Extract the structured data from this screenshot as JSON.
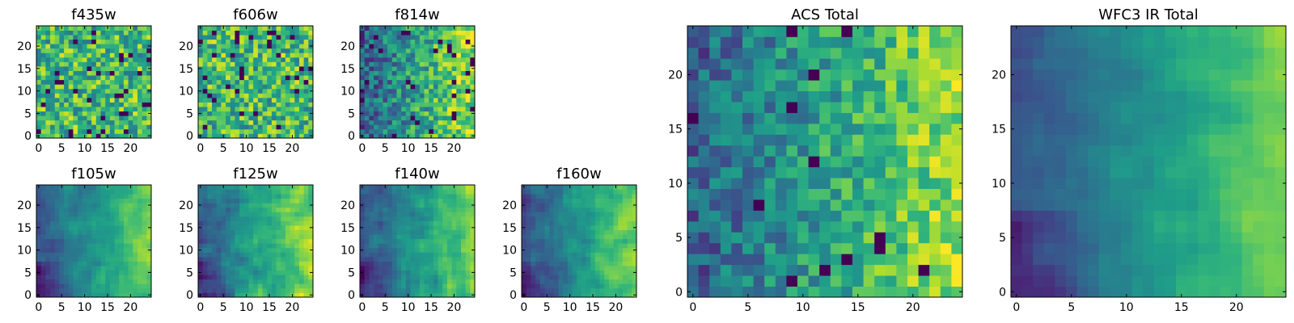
{
  "chart_data": {
    "type": "heatmap",
    "colormap": "viridis",
    "grid_size": 25,
    "panels": [
      {
        "title": "f435w",
        "xticks": [
          0,
          5,
          10,
          15,
          20
        ],
        "yticks": [
          0,
          5,
          10,
          15,
          20
        ],
        "xlim": [
          0,
          25
        ],
        "ylim": [
          0,
          25
        ],
        "pattern": "noise",
        "seed": 11,
        "bias": 0.05,
        "noise": 1.0
      },
      {
        "title": "f606w",
        "xticks": [
          0,
          5,
          10,
          15,
          20
        ],
        "yticks": [
          0,
          5,
          10,
          15,
          20
        ],
        "xlim": [
          0,
          25
        ],
        "ylim": [
          0,
          25
        ],
        "pattern": "noise",
        "seed": 23,
        "bias": 0.05,
        "noise": 1.0
      },
      {
        "title": "f814w",
        "xticks": [
          0,
          5,
          10,
          15,
          20
        ],
        "yticks": [
          0,
          5,
          10,
          15,
          20
        ],
        "xlim": [
          0,
          25
        ],
        "ylim": [
          0,
          25
        ],
        "pattern": "gradient",
        "seed": 37,
        "bias": 0.0,
        "noise": 0.8
      },
      {
        "title": "f105w",
        "xticks": [
          0,
          5,
          10,
          15,
          20
        ],
        "yticks": [
          0,
          5,
          10,
          15,
          20
        ],
        "xlim": [
          0,
          25
        ],
        "ylim": [
          0,
          25
        ],
        "pattern": "smooth",
        "seed": 41,
        "bias": 0.0,
        "noise": 0.45
      },
      {
        "title": "f125w",
        "xticks": [
          0,
          5,
          10,
          15,
          20
        ],
        "yticks": [
          0,
          5,
          10,
          15,
          20
        ],
        "xlim": [
          0,
          25
        ],
        "ylim": [
          0,
          25
        ],
        "pattern": "smooth",
        "seed": 53,
        "bias": 0.05,
        "noise": 0.6
      },
      {
        "title": "f140w",
        "xticks": [
          0,
          5,
          10,
          15,
          20
        ],
        "yticks": [
          0,
          5,
          10,
          15,
          20
        ],
        "xlim": [
          0,
          25
        ],
        "ylim": [
          0,
          25
        ],
        "pattern": "smooth",
        "seed": 67,
        "bias": 0.0,
        "noise": 0.55
      },
      {
        "title": "f160w",
        "xticks": [
          0,
          5,
          10,
          15,
          20
        ],
        "yticks": [
          0,
          5,
          10,
          15,
          20
        ],
        "xlim": [
          0,
          25
        ],
        "ylim": [
          0,
          25
        ],
        "pattern": "smooth",
        "seed": 79,
        "bias": 0.0,
        "noise": 0.5
      },
      {
        "title": "ACS Total",
        "xticks": [
          0,
          5,
          10,
          15,
          20
        ],
        "yticks": [
          0,
          5,
          10,
          15,
          20
        ],
        "xlim": [
          0,
          25
        ],
        "ylim": [
          0,
          25
        ],
        "pattern": "gradient",
        "seed": 83,
        "bias": 0.0,
        "noise": 0.65
      },
      {
        "title": "WFC3 IR Total",
        "xticks": [
          0,
          5,
          10,
          15,
          20
        ],
        "yticks": [
          0,
          5,
          10,
          15,
          20
        ],
        "xlim": [
          0,
          25
        ],
        "ylim": [
          0,
          25
        ],
        "pattern": "smooth",
        "seed": 97,
        "bias": 0.0,
        "noise": 0.3
      }
    ]
  }
}
